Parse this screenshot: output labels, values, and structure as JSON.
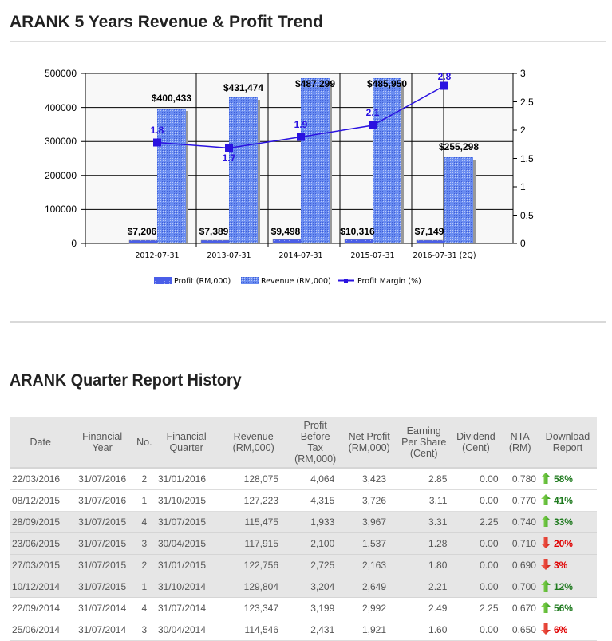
{
  "section1": {
    "title": "ARANK 5 Years Revenue & Profit Trend"
  },
  "section2": {
    "title": "ARANK Quarter Report History"
  },
  "chart_data": {
    "type": "bar",
    "title": "ARANK 5 Years Revenue & Profit Trend",
    "categories": [
      "2012-07-31",
      "2013-07-31",
      "2014-07-31",
      "2015-07-31",
      "2016-07-31 (2Q)"
    ],
    "series": [
      {
        "name": "Profit (RM,000)",
        "type": "bar",
        "axis": "left",
        "values": [
          7206,
          7389,
          9498,
          10316,
          7149
        ],
        "labels": [
          "$7,206",
          "$7,389",
          "$9,498",
          "$10,316",
          "$7,149"
        ],
        "color": "#4a5ee8"
      },
      {
        "name": "Revenue (RM,000)",
        "type": "bar",
        "axis": "left",
        "values": [
          400433,
          431474,
          487299,
          485950,
          255298
        ],
        "labels": [
          "$400,433",
          "$431,474",
          "$487,299",
          "$485,950",
          "$255,298"
        ],
        "color": "#5b7fe6"
      },
      {
        "name": "Profit Margin (%)",
        "type": "line",
        "axis": "right",
        "values": [
          1.8,
          1.7,
          1.9,
          2.1,
          2.8
        ],
        "labels": [
          "1.8",
          "1.7",
          "1.9",
          "2.1",
          "2.8"
        ],
        "color": "#2a12e0"
      }
    ],
    "left_axis": {
      "min": 0,
      "max": 500000,
      "ticks": [
        "0",
        "100000",
        "200000",
        "300000",
        "400000",
        "500000"
      ]
    },
    "right_axis": {
      "min": 0,
      "max": 3,
      "ticks": [
        "0",
        "0.5",
        "1",
        "1.5",
        "2",
        "2.5",
        "3"
      ]
    },
    "xlabel": "",
    "ylabel": "",
    "grid": true,
    "legend_position": "bottom"
  },
  "legend": {
    "profit": "Profit (RM,000)",
    "revenue": "Revenue (RM,000)",
    "margin": "Profit Margin (%)"
  },
  "table": {
    "headers": {
      "date": "Date",
      "fy": "Financial Year",
      "no": "No.",
      "fq": "Financial Quarter",
      "revenue": "Revenue (RM,000)",
      "pbt": "Profit Before Tax (RM,000)",
      "np": "Net Profit (RM,000)",
      "eps": "Earning Per Share (Cent)",
      "div": "Dividend (Cent)",
      "nta": "NTA (RM)",
      "dl": "Download Report"
    },
    "rows": [
      {
        "date": "22/03/2016",
        "fy": "31/07/2016",
        "no": "2",
        "fq": "31/01/2016",
        "revenue": "128,075",
        "pbt": "4,064",
        "np": "3,423",
        "eps": "2.85",
        "div": "0.00",
        "nta": "0.780",
        "dir": "up",
        "change": "58%"
      },
      {
        "date": "08/12/2015",
        "fy": "31/07/2016",
        "no": "1",
        "fq": "31/10/2015",
        "revenue": "127,223",
        "pbt": "4,315",
        "np": "3,726",
        "eps": "3.11",
        "div": "0.00",
        "nta": "0.770",
        "dir": "up",
        "change": "41%"
      },
      {
        "date": "28/09/2015",
        "fy": "31/07/2015",
        "no": "4",
        "fq": "31/07/2015",
        "revenue": "115,475",
        "pbt": "1,933",
        "np": "3,967",
        "eps": "3.31",
        "div": "2.25",
        "nta": "0.740",
        "dir": "up",
        "change": "33%"
      },
      {
        "date": "23/06/2015",
        "fy": "31/07/2015",
        "no": "3",
        "fq": "30/04/2015",
        "revenue": "117,915",
        "pbt": "2,100",
        "np": "1,537",
        "eps": "1.28",
        "div": "0.00",
        "nta": "0.710",
        "dir": "down",
        "change": "20%"
      },
      {
        "date": "27/03/2015",
        "fy": "31/07/2015",
        "no": "2",
        "fq": "31/01/2015",
        "revenue": "122,756",
        "pbt": "2,725",
        "np": "2,163",
        "eps": "1.80",
        "div": "0.00",
        "nta": "0.690",
        "dir": "down",
        "change": "3%"
      },
      {
        "date": "10/12/2014",
        "fy": "31/07/2015",
        "no": "1",
        "fq": "31/10/2014",
        "revenue": "129,804",
        "pbt": "3,204",
        "np": "2,649",
        "eps": "2.21",
        "div": "0.00",
        "nta": "0.700",
        "dir": "up",
        "change": "12%"
      },
      {
        "date": "22/09/2014",
        "fy": "31/07/2014",
        "no": "4",
        "fq": "31/07/2014",
        "revenue": "123,347",
        "pbt": "3,199",
        "np": "2,992",
        "eps": "2.49",
        "div": "2.25",
        "nta": "0.670",
        "dir": "up",
        "change": "56%"
      },
      {
        "date": "25/06/2014",
        "fy": "31/07/2014",
        "no": "3",
        "fq": "30/04/2014",
        "revenue": "114,546",
        "pbt": "2,431",
        "np": "1,921",
        "eps": "1.60",
        "div": "0.00",
        "nta": "0.650",
        "dir": "down",
        "change": "6%"
      }
    ]
  },
  "colors": {
    "up": "#1f7a1f",
    "down": "#e00000",
    "header_bg": "#e6e6e6",
    "margin_line": "#2a12e0"
  }
}
